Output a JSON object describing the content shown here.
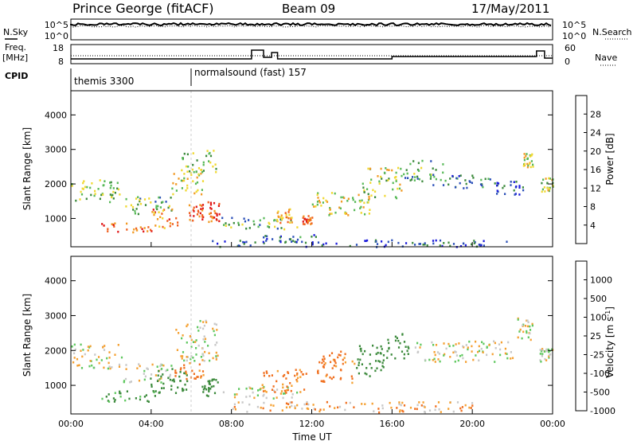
{
  "header": {
    "station": "Prince George (fitACF)",
    "beam": "Beam 09",
    "date": "17/May/2011"
  },
  "top_panels": {
    "nsky_label": "N.Sky",
    "nsearch_label": "N.Search",
    "noise_ticks_left": [
      "10^5",
      "10^0"
    ],
    "noise_ticks_right": [
      "10^5",
      "10^0"
    ],
    "freq_label_1": "Freq.",
    "freq_label_2": "[MHz]",
    "freq_ticks": [
      "18",
      "8"
    ],
    "nave_label": "Nave",
    "nave_ticks": [
      "60",
      "0"
    ],
    "cpid_label": "CPID",
    "cpid_segments": [
      {
        "start_hour": 0,
        "label": "themis 3300"
      },
      {
        "start_hour": 6,
        "label": "normalsound (fast) 157"
      }
    ]
  },
  "chart_data": [
    {
      "type": "heatmap",
      "quantity": "Power",
      "colorbar_label": "Power [dB]",
      "colorbar_ticks": [
        "28",
        "24",
        "20",
        "16",
        "12",
        "8",
        "4"
      ],
      "colorbar_values": [
        28,
        24,
        20,
        16,
        12,
        8,
        4
      ],
      "colors": [
        "#1a1adb",
        "#2a4fb8",
        "#3c8a3c",
        "#57b957",
        "#f0d830",
        "#f29a24",
        "#f06020",
        "#e01818"
      ],
      "ylabel": "Slant Range [km]",
      "yticks": [
        "4000",
        "3000",
        "2000",
        "1000"
      ],
      "ytick_values": [
        4000,
        3000,
        2000,
        1000
      ],
      "ylim": [
        180,
        4700
      ],
      "xlim_hours": [
        0,
        24
      ],
      "echo_regions": [
        {
          "t0": 0.0,
          "t1": 2.4,
          "r0": 1500,
          "r1": 2200,
          "power": 14
        },
        {
          "t0": 2.4,
          "t1": 5.0,
          "r0": 1150,
          "r1": 1650,
          "power": 12
        },
        {
          "t0": 1.5,
          "t1": 4.0,
          "r0": 600,
          "r1": 900,
          "power": 26
        },
        {
          "t0": 4.0,
          "t1": 5.3,
          "r0": 700,
          "r1": 1300,
          "power": 24
        },
        {
          "t0": 5.0,
          "t1": 6.6,
          "r0": 1700,
          "r1": 2500,
          "power": 18
        },
        {
          "t0": 5.5,
          "t1": 7.2,
          "r0": 2300,
          "r1": 3000,
          "power": 14
        },
        {
          "t0": 5.8,
          "t1": 6.6,
          "r0": 950,
          "r1": 1450,
          "power": 26
        },
        {
          "t0": 6.8,
          "t1": 7.4,
          "r0": 850,
          "r1": 1500,
          "power": 28
        },
        {
          "t0": 7.5,
          "t1": 11.5,
          "r0": 700,
          "r1": 1050,
          "power": 12
        },
        {
          "t0": 10.2,
          "t1": 11.0,
          "r0": 900,
          "r1": 1300,
          "power": 22
        },
        {
          "t0": 11.5,
          "t1": 12.0,
          "r0": 850,
          "r1": 1100,
          "power": 26
        },
        {
          "t0": 12.0,
          "t1": 15.0,
          "r0": 1100,
          "r1": 1800,
          "power": 18
        },
        {
          "t0": 14.5,
          "t1": 16.5,
          "r0": 1600,
          "r1": 2500,
          "power": 16
        },
        {
          "t0": 16.5,
          "t1": 18.5,
          "r0": 2100,
          "r1": 2700,
          "power": 12
        },
        {
          "t0": 18.0,
          "t1": 21.0,
          "r0": 1900,
          "r1": 2300,
          "power": 8
        },
        {
          "t0": 21.0,
          "t1": 22.5,
          "r0": 1700,
          "r1": 2100,
          "power": 6
        },
        {
          "t0": 22.5,
          "t1": 23.0,
          "r0": 2500,
          "r1": 2900,
          "power": 18
        },
        {
          "t0": 23.4,
          "t1": 24.0,
          "r0": 1800,
          "r1": 2200,
          "power": 16
        },
        {
          "t0": 9.5,
          "t1": 12.5,
          "r0": 320,
          "r1": 550,
          "power": 8
        },
        {
          "t0": 7.0,
          "t1": 22.0,
          "r0": 200,
          "r1": 400,
          "power": 6
        }
      ]
    },
    {
      "type": "heatmap",
      "quantity": "Velocity",
      "colorbar_label": "Velocity [m s",
      "colorbar_label_sup": "-1",
      "colorbar_label_close": "]",
      "colorbar_ticks": [
        "1000",
        "500",
        "100",
        "25",
        "-25",
        "-100",
        "-500",
        "-1000"
      ],
      "colorbar_values": [
        1000,
        500,
        100,
        25,
        -25,
        -100,
        -500,
        -1000
      ],
      "colors": [
        "#2a3fc8",
        "#3a6ea8",
        "#3c8a3c",
        "#5fc85f",
        "#c8c8c8",
        "#f5a030",
        "#f07020",
        "#e01818"
      ],
      "ylabel": "Slant Range [km]",
      "yticks": [
        "4000",
        "3000",
        "2000",
        "1000"
      ],
      "ytick_values": [
        4000,
        3000,
        2000,
        1000
      ],
      "ylim": [
        180,
        4700
      ],
      "xlabel": "Time UT",
      "xticks": [
        "00:00",
        "04:00",
        "08:00",
        "12:00",
        "16:00",
        "20:00",
        "00:00"
      ],
      "xtick_hours": [
        0,
        4,
        8,
        12,
        16,
        20,
        24
      ],
      "xlim_hours": [
        0,
        24
      ],
      "echo_regions": [
        {
          "t0": 0.0,
          "t1": 2.5,
          "r0": 1500,
          "r1": 2200,
          "vel": 0
        },
        {
          "t0": 2.5,
          "t1": 5.0,
          "r0": 1100,
          "r1": 1650,
          "vel": 0
        },
        {
          "t0": 1.5,
          "t1": 4.2,
          "r0": 550,
          "r1": 900,
          "vel": -150
        },
        {
          "t0": 3.8,
          "t1": 5.8,
          "r0": 800,
          "r1": 1500,
          "vel": -300
        },
        {
          "t0": 5.0,
          "t1": 6.6,
          "r0": 1200,
          "r1": 1700,
          "vel": 150
        },
        {
          "t0": 5.2,
          "t1": 7.3,
          "r0": 1700,
          "r1": 2900,
          "vel": 0
        },
        {
          "t0": 6.5,
          "t1": 7.3,
          "r0": 700,
          "r1": 1200,
          "vel": -300
        },
        {
          "t0": 7.5,
          "t1": 11.5,
          "r0": 650,
          "r1": 1000,
          "vel": 0
        },
        {
          "t0": 9.5,
          "t1": 11.7,
          "r0": 800,
          "r1": 1500,
          "vel": 150
        },
        {
          "t0": 12.2,
          "t1": 14.2,
          "r0": 1100,
          "r1": 2000,
          "vel": 150
        },
        {
          "t0": 14.2,
          "t1": 15.6,
          "r0": 1200,
          "r1": 2200,
          "vel": -300
        },
        {
          "t0": 15.6,
          "t1": 16.8,
          "r0": 1800,
          "r1": 2500,
          "vel": -300
        },
        {
          "t0": 17.0,
          "t1": 22.0,
          "r0": 1700,
          "r1": 2300,
          "vel": 0
        },
        {
          "t0": 22.2,
          "t1": 23.0,
          "r0": 2300,
          "r1": 3000,
          "vel": 0
        },
        {
          "t0": 23.3,
          "t1": 24.0,
          "r0": 1700,
          "r1": 2100,
          "vel": 0
        },
        {
          "t0": 8.0,
          "t1": 20.0,
          "r0": 250,
          "r1": 550,
          "vel": 60
        }
      ]
    }
  ],
  "colors": {
    "axis": "#000000",
    "cpid_divider": "#cccccc"
  }
}
